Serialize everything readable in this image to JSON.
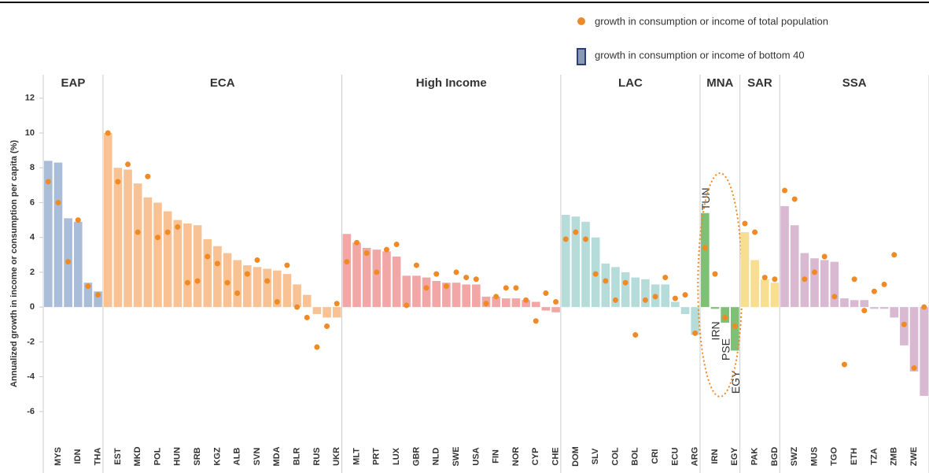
{
  "chart_data": {
    "type": "bar",
    "ylabel": "Annualized growth in income or consumption per capita (%)",
    "ylim": [
      -7,
      12.35
    ],
    "yticks": [
      -6,
      -4,
      -2,
      0,
      2,
      4,
      6,
      8,
      10,
      12
    ],
    "dot_series": {
      "name": "growth in consumption or income of total population",
      "color": "#f08a24"
    },
    "bar_series": {
      "name": "growth in consumption or income of bottom 40",
      "color": "#8a9bb0"
    },
    "panels": [
      {
        "title": "EAP",
        "color": "#a9bdd8",
        "categories": [
          null,
          "MYS",
          null,
          "IDN",
          null,
          "THA"
        ],
        "bars": [
          8.4,
          8.3,
          5.1,
          4.9,
          1.4,
          0.9
        ],
        "dots": [
          7.2,
          6.0,
          2.6,
          5.0,
          1.2,
          0.7
        ]
      },
      {
        "title": "ECA",
        "color": "#f9c294",
        "categories": [
          null,
          "EST",
          null,
          "MKD",
          null,
          "POL",
          null,
          "HUN",
          null,
          "SRB",
          null,
          "KGZ",
          null,
          "ALB",
          null,
          "SVN",
          null,
          "MDA",
          null,
          "BLR",
          null,
          "RUS",
          null,
          "UKR"
        ],
        "bars": [
          10.0,
          8.0,
          7.9,
          7.1,
          6.3,
          6.0,
          5.5,
          5.0,
          4.8,
          4.7,
          3.9,
          3.5,
          3.1,
          2.7,
          2.4,
          2.3,
          2.2,
          2.1,
          1.9,
          1.3,
          0.7,
          -0.4,
          -0.6,
          -0.6
        ],
        "dots": [
          10.0,
          7.2,
          8.2,
          4.3,
          7.5,
          4.0,
          4.3,
          4.6,
          1.4,
          1.5,
          2.9,
          2.5,
          1.4,
          0.8,
          1.9,
          2.7,
          1.5,
          0.3,
          2.4,
          0.0,
          -0.6,
          -2.3,
          -1.1,
          0.2
        ]
      },
      {
        "title": "High Income",
        "color": "#f2a7a7",
        "categories": [
          null,
          "MLT",
          null,
          "PRT",
          null,
          "LUX",
          null,
          "GBR",
          null,
          "NLD",
          null,
          "SWE",
          null,
          "USA",
          null,
          "FIN",
          null,
          "NOR",
          null,
          "CYP",
          null,
          "CHE"
        ],
        "bars": [
          4.2,
          3.7,
          3.4,
          3.3,
          3.2,
          2.9,
          1.8,
          1.8,
          1.7,
          1.5,
          1.4,
          1.4,
          1.3,
          1.3,
          0.6,
          0.6,
          0.5,
          0.5,
          0.4,
          0.3,
          -0.2,
          -0.3
        ],
        "dots": [
          2.6,
          3.7,
          3.1,
          2.0,
          3.3,
          3.6,
          0.1,
          2.4,
          1.1,
          1.9,
          1.2,
          2.0,
          1.7,
          1.6,
          0.2,
          0.6,
          1.1,
          1.1,
          0.4,
          -0.8,
          0.8,
          0.3
        ]
      },
      {
        "title": "LAC",
        "color": "#b6dcd9",
        "categories": [
          null,
          "DOM",
          null,
          "SLV",
          null,
          "COL",
          null,
          "BOL",
          null,
          "CRI",
          null,
          "ECU",
          null,
          "ARG"
        ],
        "bars": [
          5.3,
          5.2,
          4.9,
          4.0,
          2.5,
          2.3,
          2.0,
          1.7,
          1.6,
          1.3,
          1.3,
          0.3,
          -0.4,
          -1.6
        ],
        "dots": [
          3.9,
          4.3,
          3.9,
          1.9,
          1.5,
          0.4,
          1.4,
          -1.6,
          0.4,
          0.6,
          1.7,
          0.5,
          0.7,
          -1.5
        ]
      },
      {
        "title": "MNA",
        "color": "#7fbf76",
        "categories": [
          null,
          "IRN",
          null,
          "EGY"
        ],
        "bars": [
          5.4,
          -0.1,
          -0.9,
          -2.5
        ],
        "dots": [
          3.4,
          1.9,
          -0.6,
          -1.1
        ],
        "annotations": [
          "TUN",
          "IRN",
          "PSE",
          "EGY"
        ]
      },
      {
        "title": "SAR",
        "color": "#f8de90",
        "categories": [
          null,
          "PAK",
          null,
          "BGD"
        ],
        "bars": [
          4.3,
          2.7,
          1.6,
          1.4
        ],
        "dots": [
          4.8,
          4.3,
          1.7,
          1.6
        ]
      },
      {
        "title": "SSA",
        "color": "#d9b8d2",
        "categories": [
          null,
          "SWZ",
          null,
          "MUS",
          null,
          "TGO",
          null,
          "ETH",
          null,
          "TZA",
          null,
          "ZMB",
          null,
          "ZWE",
          null
        ],
        "bars": [
          5.8,
          4.7,
          3.1,
          2.8,
          2.7,
          2.6,
          0.5,
          0.4,
          0.4,
          -0.1,
          -0.1,
          -0.6,
          -2.2,
          -3.7,
          -5.1
        ],
        "dots": [
          6.7,
          6.2,
          1.6,
          2.0,
          2.9,
          0.6,
          -3.3,
          1.6,
          -0.2,
          0.9,
          1.3,
          3.0,
          -1.0,
          -3.5,
          0.0
        ]
      }
    ]
  }
}
